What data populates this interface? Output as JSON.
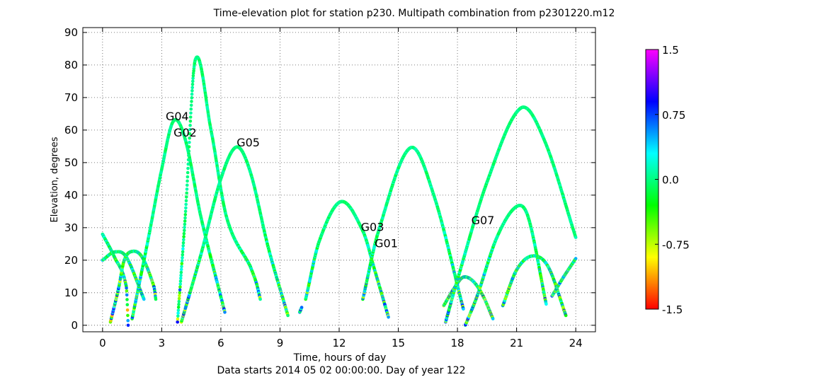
{
  "chart_data": {
    "type": "scatter",
    "title": "Time-elevation plot for station p230.   Multipath combination from p2301220.m12",
    "xlabel": "Time, hours of day",
    "xlabel2": "Data starts 2014 05 02 00:00:00.  Day of year 122",
    "ylabel": "Elevation, degrees",
    "xlim": [
      -1,
      25
    ],
    "ylim": [
      -2,
      91.5
    ],
    "xticks": [
      0,
      3,
      6,
      9,
      12,
      15,
      18,
      21,
      24
    ],
    "yticks": [
      0,
      10,
      20,
      30,
      40,
      50,
      60,
      70,
      80,
      90
    ],
    "grid": true,
    "colorbar": {
      "colormap": "gist_rainbow_r",
      "range": [
        -1.5,
        1.5
      ],
      "tick_values": [
        1.5,
        0.75,
        0.0,
        -0.75,
        -1.5
      ],
      "tick_labels": [
        "1.5",
        "0.75",
        "0.0",
        "-0.75",
        "-1.5"
      ]
    },
    "annotations": [
      {
        "text": "G04",
        "x": 3.2,
        "y": 63
      },
      {
        "text": "G02",
        "x": 3.6,
        "y": 58
      },
      {
        "text": "G05",
        "x": 6.8,
        "y": 55
      },
      {
        "text": "G03",
        "x": 13.1,
        "y": 29
      },
      {
        "text": "G01",
        "x": 13.8,
        "y": 24
      },
      {
        "text": "G07",
        "x": 18.7,
        "y": 31
      }
    ],
    "series": [
      {
        "arc": [
          [
            0.0,
            28
          ],
          [
            0.6,
            21
          ],
          [
            1.2,
            12
          ],
          [
            1.3,
            0
          ]
        ],
        "noise": 0.35
      },
      {
        "arc": [
          [
            0.0,
            20
          ],
          [
            0.6,
            22.5
          ],
          [
            1.2,
            21
          ],
          [
            2.1,
            8
          ]
        ],
        "noise": 0.3
      },
      {
        "arc": [
          [
            0.4,
            1
          ],
          [
            0.8,
            11
          ],
          [
            1.1,
            20
          ],
          [
            1.5,
            22.7
          ],
          [
            2.0,
            21
          ],
          [
            2.6,
            12
          ],
          [
            2.7,
            8
          ]
        ],
        "noise": 0.35
      },
      {
        "arc": [
          [
            1.5,
            2
          ],
          [
            2.3,
            26
          ],
          [
            3.0,
            48
          ],
          [
            3.6,
            62.8
          ],
          [
            4.2,
            57
          ],
          [
            5.0,
            33
          ],
          [
            6.2,
            4
          ]
        ],
        "noise": 0.15
      },
      {
        "arc": [
          [
            3.8,
            1
          ],
          [
            4.2,
            34
          ],
          [
            4.7,
            81.5
          ],
          [
            5.5,
            60
          ],
          [
            6.3,
            33
          ],
          [
            7.5,
            18
          ]
        ],
        "noise": 0.15
      },
      {
        "arc": [
          [
            4.0,
            1
          ],
          [
            5.0,
            22
          ],
          [
            6.0,
            45
          ],
          [
            6.8,
            54.8
          ],
          [
            7.5,
            47
          ],
          [
            8.4,
            24
          ],
          [
            9.4,
            3
          ]
        ],
        "noise": 0.15
      },
      {
        "arc": [
          [
            7.5,
            18
          ],
          [
            7.8,
            13
          ],
          [
            8.0,
            8
          ]
        ],
        "noise": 0.2
      },
      {
        "arc": [
          [
            10.0,
            4
          ],
          [
            10.1,
            5.5
          ]
        ],
        "noise": 0.2
      },
      {
        "arc": [
          [
            10.3,
            8
          ],
          [
            11.0,
            26
          ],
          [
            12.1,
            38
          ],
          [
            13.2,
            29
          ],
          [
            13.8,
            17
          ],
          [
            14.5,
            2.5
          ]
        ],
        "noise": 0.2
      },
      {
        "arc": [
          [
            13.2,
            8
          ],
          [
            14.0,
            29
          ],
          [
            15.6,
            54.5
          ],
          [
            16.8,
            40
          ],
          [
            18.3,
            5
          ]
        ],
        "noise": 0.2
      },
      {
        "arc": [
          [
            17.3,
            6
          ],
          [
            17.9,
            12
          ],
          [
            18.3,
            14.8
          ],
          [
            18.8,
            13.5
          ],
          [
            19.3,
            9
          ],
          [
            19.8,
            2
          ]
        ],
        "noise": 0.3
      },
      {
        "arc": [
          [
            17.4,
            1
          ],
          [
            18.0,
            14
          ],
          [
            19.5,
            44
          ],
          [
            21.2,
            66.7
          ],
          [
            22.4,
            57
          ],
          [
            24.0,
            27
          ]
        ],
        "noise": 0.15
      },
      {
        "arc": [
          [
            18.4,
            0
          ],
          [
            19.0,
            9
          ],
          [
            20.0,
            27
          ],
          [
            21.0,
            36.5
          ],
          [
            21.6,
            33
          ],
          [
            22.5,
            6.5
          ]
        ],
        "noise": 0.2
      },
      {
        "arc": [
          [
            20.3,
            6
          ],
          [
            21.0,
            17
          ],
          [
            21.8,
            21.3
          ],
          [
            22.6,
            18
          ],
          [
            23.5,
            3
          ]
        ],
        "noise": 0.25
      },
      {
        "arc": [
          [
            22.8,
            9
          ],
          [
            23.4,
            15
          ],
          [
            24.0,
            20.5
          ]
        ],
        "noise": 0.3
      }
    ]
  }
}
